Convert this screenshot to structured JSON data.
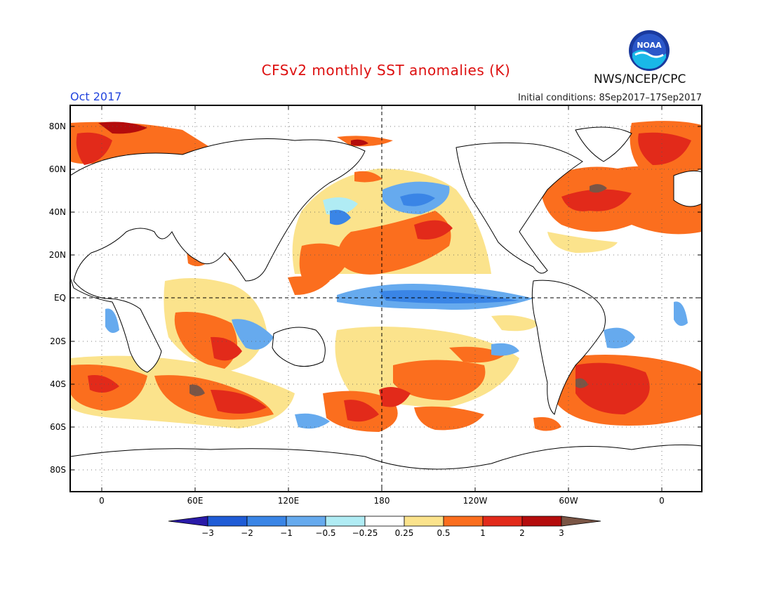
{
  "header": {
    "title": "CFSv2 monthly SST anomalies (K)",
    "month": "Oct 2017",
    "initial_conditions": "Initial conditions: 8Sep2017–17Sep2017",
    "agency": "NWS/NCEP/CPC",
    "logo_text": "NOAA"
  },
  "axes": {
    "lat_labels": [
      "80N",
      "60N",
      "40N",
      "20N",
      "EQ",
      "20S",
      "40S",
      "60S",
      "80S"
    ],
    "lon_labels": [
      "0",
      "60E",
      "120E",
      "180",
      "120W",
      "60W",
      "0"
    ]
  },
  "colorbar": {
    "labels": [
      "−3",
      "−2",
      "−1",
      "−0.5",
      "−0.25",
      "0.25",
      "0.5",
      "1",
      "2",
      "3"
    ],
    "colors": [
      "#2a1aa8",
      "#1f5cd6",
      "#3a85e6",
      "#66aaee",
      "#b0ecf4",
      "#ffffff",
      "#fbe38c",
      "#fb6e1e",
      "#e22a1a",
      "#b40c0c",
      "#7a5545"
    ]
  },
  "colors": {
    "title": "#dd1010",
    "month": "#2244dd"
  }
}
